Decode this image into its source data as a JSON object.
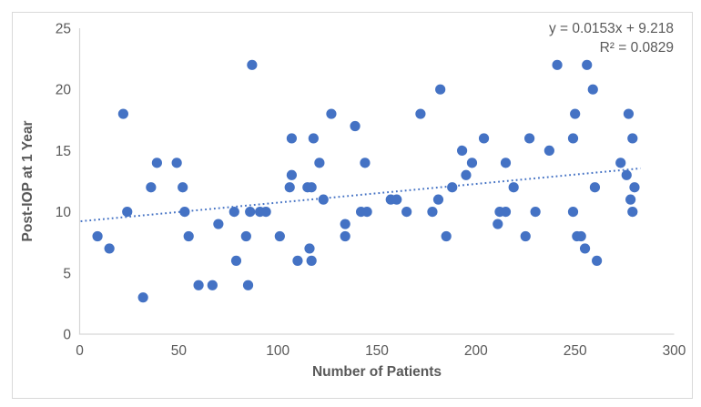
{
  "chart_data": {
    "type": "scatter",
    "title": "",
    "xlabel": "Number of Patients",
    "ylabel": "Post-IOP at 1 Year",
    "xlim": [
      0,
      300
    ],
    "ylim": [
      0,
      25
    ],
    "xticks": [
      0,
      50,
      100,
      150,
      200,
      250,
      300
    ],
    "yticks": [
      0,
      5,
      10,
      15,
      20,
      25
    ],
    "grid": false,
    "legend_position": "none",
    "marker_color": "#4472C4",
    "trendline_color": "#4472C4",
    "text_color": "#595959",
    "axis_color": "#D6D6D6",
    "frame_color": "#D9D9D9",
    "points": [
      [
        9,
        8
      ],
      [
        15,
        7
      ],
      [
        22,
        18
      ],
      [
        24,
        10
      ],
      [
        32,
        3
      ],
      [
        36,
        12
      ],
      [
        39,
        14
      ],
      [
        49,
        14
      ],
      [
        52,
        12
      ],
      [
        53,
        10
      ],
      [
        55,
        8
      ],
      [
        60,
        4
      ],
      [
        67,
        4
      ],
      [
        70,
        9
      ],
      [
        78,
        10
      ],
      [
        79,
        6
      ],
      [
        84,
        8
      ],
      [
        85,
        4
      ],
      [
        86,
        10
      ],
      [
        87,
        22
      ],
      [
        91,
        10
      ],
      [
        94,
        10
      ],
      [
        101,
        8
      ],
      [
        106,
        12
      ],
      [
        107,
        13
      ],
      [
        107,
        16
      ],
      [
        110,
        6
      ],
      [
        115,
        12
      ],
      [
        116,
        7
      ],
      [
        117,
        6
      ],
      [
        117,
        12
      ],
      [
        118,
        16
      ],
      [
        121,
        14
      ],
      [
        123,
        11
      ],
      [
        127,
        18
      ],
      [
        134,
        8
      ],
      [
        134,
        9
      ],
      [
        139,
        17
      ],
      [
        142,
        10
      ],
      [
        144,
        14
      ],
      [
        145,
        10
      ],
      [
        157,
        11
      ],
      [
        160,
        11
      ],
      [
        165,
        10
      ],
      [
        172,
        18
      ],
      [
        178,
        10
      ],
      [
        181,
        11
      ],
      [
        182,
        20
      ],
      [
        185,
        8
      ],
      [
        188,
        12
      ],
      [
        193,
        15
      ],
      [
        195,
        13
      ],
      [
        198,
        14
      ],
      [
        204,
        16
      ],
      [
        211,
        9
      ],
      [
        212,
        10
      ],
      [
        215,
        10
      ],
      [
        215,
        14
      ],
      [
        219,
        12
      ],
      [
        225,
        8
      ],
      [
        227,
        16
      ],
      [
        230,
        10
      ],
      [
        237,
        15
      ],
      [
        241,
        22
      ],
      [
        249,
        10
      ],
      [
        249,
        16
      ],
      [
        250,
        18
      ],
      [
        251,
        8
      ],
      [
        253,
        8
      ],
      [
        255,
        7
      ],
      [
        256,
        22
      ],
      [
        259,
        20
      ],
      [
        260,
        12
      ],
      [
        261,
        6
      ],
      [
        273,
        14
      ],
      [
        276,
        13
      ],
      [
        277,
        18
      ],
      [
        278,
        11
      ],
      [
        279,
        10
      ],
      [
        279,
        16
      ],
      [
        280,
        12
      ]
    ],
    "trendline": {
      "slope": 0.0153,
      "intercept": 9.218,
      "x_start": 0.5,
      "x_end": 283,
      "style": "dotted",
      "equation_label": "y = 0.0153x + 9.218",
      "r2_label": "R² = 0.0829"
    }
  }
}
